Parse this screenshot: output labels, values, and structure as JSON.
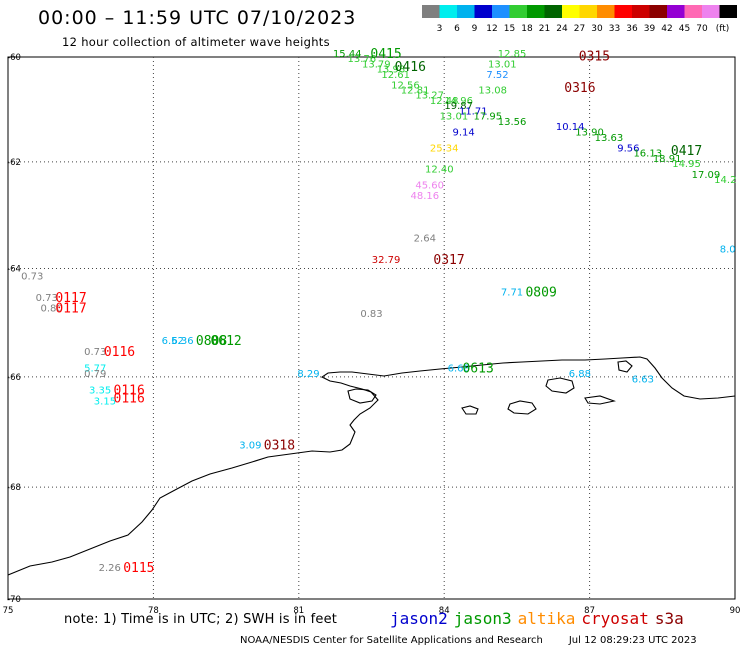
{
  "header": {
    "title": "00:00 – 11:59 UTC 07/10/2023",
    "subtitle": "12 hour collection of altimeter wave heights"
  },
  "colorbar": {
    "colors": [
      "#7f7f7f",
      "#00eeee",
      "#00b2ee",
      "#0000cd",
      "#1e90ff",
      "#32cd32",
      "#009900",
      "#006400",
      "#ffff00",
      "#ffd700",
      "#ff8c00",
      "#ff0000",
      "#cd0000",
      "#8b0000",
      "#9400d3",
      "#ff69b4",
      "#ee82ee",
      "#000000"
    ],
    "labels": [
      "3",
      "6",
      "9",
      "12",
      "15",
      "18",
      "21",
      "24",
      "27",
      "30",
      "33",
      "36",
      "39",
      "42",
      "45",
      "70"
    ],
    "unit": "(ft)"
  },
  "axes": {
    "lon_ticks": [
      "75",
      "78",
      "81",
      "84",
      "87",
      "90"
    ],
    "lat_ticks": [
      "-60",
      "-62",
      "-64",
      "-66",
      "-68",
      "-70"
    ]
  },
  "wave_labels": [
    {
      "lon": 82.0,
      "lat": -60.0,
      "text": "15.44",
      "color": "#009900"
    },
    {
      "lon": 82.3,
      "lat": -60.1,
      "text": "13.76",
      "color": "#32cd32"
    },
    {
      "lon": 82.6,
      "lat": -60.2,
      "text": "13.79",
      "color": "#32cd32"
    },
    {
      "lon": 82.9,
      "lat": -60.3,
      "text": "13.98",
      "color": "#32cd32"
    },
    {
      "lon": 83.0,
      "lat": -60.4,
      "text": "12.61",
      "color": "#32cd32"
    },
    {
      "lon": 83.2,
      "lat": -60.6,
      "text": "12.56",
      "color": "#32cd32"
    },
    {
      "lon": 83.4,
      "lat": -60.7,
      "text": "12.81",
      "color": "#32cd32"
    },
    {
      "lon": 83.7,
      "lat": -60.8,
      "text": "13.27",
      "color": "#32cd32"
    },
    {
      "lon": 84.0,
      "lat": -60.9,
      "text": "12.48",
      "color": "#32cd32"
    },
    {
      "lon": 84.3,
      "lat": -60.9,
      "text": "14.96",
      "color": "#32cd32"
    },
    {
      "lon": 84.3,
      "lat": -61.0,
      "text": "19.87",
      "color": "#006400"
    },
    {
      "lon": 84.6,
      "lat": -61.1,
      "text": "11.71",
      "color": "#0000cd"
    },
    {
      "lon": 84.2,
      "lat": -61.2,
      "text": "13.01",
      "color": "#32cd32"
    },
    {
      "lon": 84.9,
      "lat": -61.2,
      "text": "17.95",
      "color": "#009900"
    },
    {
      "lon": 85.4,
      "lat": -61.3,
      "text": "13.56",
      "color": "#009900"
    },
    {
      "lon": 84.4,
      "lat": -61.5,
      "text": "9.14",
      "color": "#0000cd"
    },
    {
      "lon": 84.0,
      "lat": -61.8,
      "text": "25.34",
      "color": "#ffd700"
    },
    {
      "lon": 83.9,
      "lat": -62.2,
      "text": "12.40",
      "color": "#32cd32"
    },
    {
      "lon": 83.7,
      "lat": -62.5,
      "text": "45.60",
      "color": "#ee82ee"
    },
    {
      "lon": 83.6,
      "lat": -62.7,
      "text": "48.16",
      "color": "#ee82ee"
    },
    {
      "lon": 85.4,
      "lat": -60.0,
      "text": "12.85",
      "color": "#32cd32"
    },
    {
      "lon": 85.2,
      "lat": -60.2,
      "text": "13.01",
      "color": "#32cd32"
    },
    {
      "lon": 85.1,
      "lat": -60.4,
      "text": "7.52",
      "color": "#1e90ff"
    },
    {
      "lon": 85.0,
      "lat": -60.7,
      "text": "13.08",
      "color": "#32cd32"
    },
    {
      "lon": 86.6,
      "lat": -61.4,
      "text": "10.14",
      "color": "#0000cd"
    },
    {
      "lon": 87.0,
      "lat": -61.5,
      "text": "13.90",
      "color": "#009900"
    },
    {
      "lon": 87.4,
      "lat": -61.6,
      "text": "13.63",
      "color": "#009900"
    },
    {
      "lon": 87.8,
      "lat": -61.8,
      "text": "9.56",
      "color": "#0000cd"
    },
    {
      "lon": 88.2,
      "lat": -61.9,
      "text": "16.13",
      "color": "#009900"
    },
    {
      "lon": 88.6,
      "lat": -62.0,
      "text": "18.91",
      "color": "#009900"
    },
    {
      "lon": 89.0,
      "lat": -62.1,
      "text": "14.95",
      "color": "#32cd32"
    },
    {
      "lon": 89.4,
      "lat": -62.3,
      "text": "17.09",
      "color": "#009900"
    },
    {
      "lon": 89.8,
      "lat": -62.4,
      "text": "14.2",
      "color": "#32cd32"
    },
    {
      "lon": 89.85,
      "lat": -63.7,
      "text": "8.0",
      "color": "#00b2ee"
    },
    {
      "lon": 83.6,
      "lat": -63.5,
      "text": "2.64",
      "color": "#7f7f7f"
    },
    {
      "lon": 82.8,
      "lat": -63.9,
      "text": "32.79",
      "color": "#cd0000"
    },
    {
      "lon": 75.5,
      "lat": -64.2,
      "text": "0.73",
      "color": "#7f7f7f"
    },
    {
      "lon": 75.8,
      "lat": -64.6,
      "text": "0.73",
      "color": "#7f7f7f"
    },
    {
      "lon": 75.9,
      "lat": -64.8,
      "text": "0.80",
      "color": "#7f7f7f"
    },
    {
      "lon": 82.5,
      "lat": -64.9,
      "text": "0.83",
      "color": "#7f7f7f"
    },
    {
      "lon": 85.4,
      "lat": -64.5,
      "text": "7.71",
      "color": "#00b2ee"
    },
    {
      "lon": 78.4,
      "lat": -65.4,
      "text": "6.52",
      "color": "#00b2ee"
    },
    {
      "lon": 78.6,
      "lat": -65.4,
      "text": "6.36",
      "color": "#00b2ee"
    },
    {
      "lon": 76.8,
      "lat": -65.6,
      "text": "0.73",
      "color": "#7f7f7f"
    },
    {
      "lon": 76.8,
      "lat": -65.9,
      "text": "5.77",
      "color": "#00eeee"
    },
    {
      "lon": 76.8,
      "lat": -66.0,
      "text": "0.79",
      "color": "#7f7f7f"
    },
    {
      "lon": 81.2,
      "lat": -66.0,
      "text": "8.29",
      "color": "#00b2ee"
    },
    {
      "lon": 84.3,
      "lat": -65.9,
      "text": "6.68",
      "color": "#00b2ee"
    },
    {
      "lon": 86.8,
      "lat": -66.0,
      "text": "6.88",
      "color": "#00b2ee"
    },
    {
      "lon": 88.1,
      "lat": -66.1,
      "text": "6.63",
      "color": "#00b2ee"
    },
    {
      "lon": 76.9,
      "lat": -66.3,
      "text": "3.35",
      "color": "#00eeee"
    },
    {
      "lon": 77.0,
      "lat": -66.5,
      "text": "3.15",
      "color": "#00eeee"
    },
    {
      "lon": 80.0,
      "lat": -67.3,
      "text": "3.09",
      "color": "#00b2ee"
    },
    {
      "lon": 77.1,
      "lat": -69.5,
      "text": "2.26",
      "color": "#7f7f7f"
    }
  ],
  "pass_labels": [
    {
      "lon": 82.8,
      "lat": -60.0,
      "text": "0415",
      "color": "#009900"
    },
    {
      "lon": 83.3,
      "lat": -60.25,
      "text": "0416",
      "color": "#006400"
    },
    {
      "lon": 87.1,
      "lat": -60.05,
      "text": "0315",
      "color": "#8b0000"
    },
    {
      "lon": 86.8,
      "lat": -60.65,
      "text": "0316",
      "color": "#8b0000"
    },
    {
      "lon": 89.0,
      "lat": -61.85,
      "text": "0417",
      "color": "#006400"
    },
    {
      "lon": 84.1,
      "lat": -63.9,
      "text": "0317",
      "color": "#8b0000"
    },
    {
      "lon": 76.3,
      "lat": -64.6,
      "text": "0117",
      "color": "#ff0000"
    },
    {
      "lon": 76.3,
      "lat": -64.8,
      "text": "0117",
      "color": "#ff0000"
    },
    {
      "lon": 86.0,
      "lat": -64.5,
      "text": "0809",
      "color": "#009900"
    },
    {
      "lon": 79.2,
      "lat": -65.4,
      "text": "0808",
      "color": "#009900"
    },
    {
      "lon": 79.5,
      "lat": -65.4,
      "text": "0612",
      "color": "#009900"
    },
    {
      "lon": 77.3,
      "lat": -65.6,
      "text": "0116",
      "color": "#ff0000"
    },
    {
      "lon": 84.7,
      "lat": -65.9,
      "text": "0613",
      "color": "#009900"
    },
    {
      "lon": 77.5,
      "lat": -66.3,
      "text": "0116",
      "color": "#ff0000"
    },
    {
      "lon": 77.5,
      "lat": -66.45,
      "text": "0116",
      "color": "#ff0000"
    },
    {
      "lon": 80.6,
      "lat": -67.3,
      "text": "0318",
      "color": "#8b0000"
    },
    {
      "lon": 77.7,
      "lat": -69.5,
      "text": "0115",
      "color": "#ff0000"
    }
  ],
  "footer": {
    "note": "note:  1) Time is in UTC;  2) SWH is in feet",
    "satellites": [
      {
        "name": "jason2",
        "color": "#0000cd"
      },
      {
        "name": "jason3",
        "color": "#009900"
      },
      {
        "name": "altika",
        "color": "#ff8c00"
      },
      {
        "name": "cryosat",
        "color": "#cd0000"
      },
      {
        "name": "s3a",
        "color": "#8b0000"
      }
    ],
    "credit": "NOAA/NESDIS Center for Satellite Applications and Research",
    "timestamp": "Jul 12 08:29:23 UTC 2023"
  }
}
